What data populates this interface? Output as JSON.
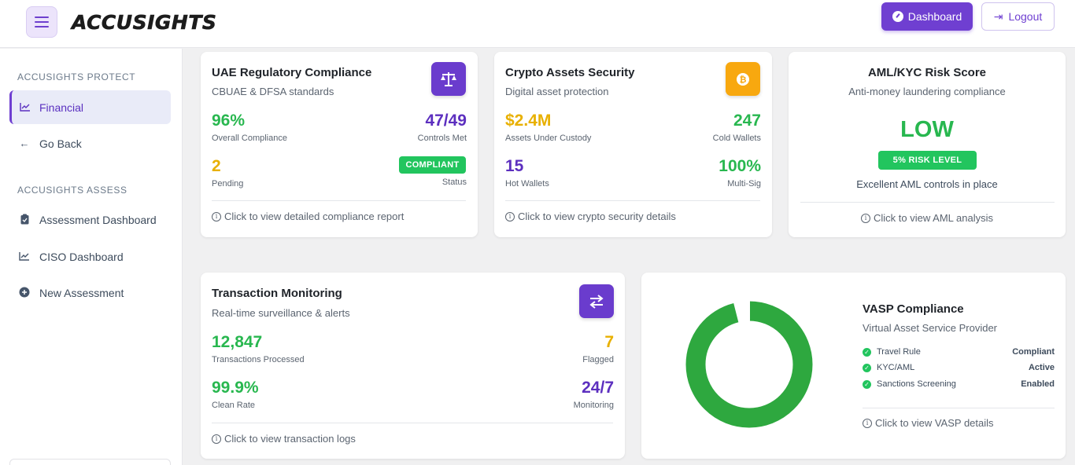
{
  "header": {
    "logo": "ACCUSIGHTS",
    "dashboard_label": "Dashboard",
    "logout_label": "Logout"
  },
  "sidebar": {
    "section1": "ACCUSIGHTS PROTECT",
    "section2": "ACCUSIGHTS ASSESS",
    "items": [
      {
        "label": "Financial",
        "icon": "chart-line-icon"
      },
      {
        "label": "Go Back",
        "icon": "arrow-left-icon"
      },
      {
        "label": "Assessment Dashboard",
        "icon": "clipboard-icon"
      },
      {
        "label": "CISO Dashboard",
        "icon": "chart-line-icon"
      },
      {
        "label": "New Assessment",
        "icon": "plus-circle-icon"
      }
    ]
  },
  "uae": {
    "title": "UAE Regulatory Compliance",
    "subtitle": "CBUAE & DFSA standards",
    "overall_value": "96%",
    "overall_label": "Overall Compliance",
    "controls_value": "47/49",
    "controls_label": "Controls Met",
    "pending_value": "2",
    "pending_label": "Pending",
    "status_badge": "COMPLIANT",
    "status_label": "Status",
    "footer": "Click to view detailed compliance report"
  },
  "crypto": {
    "title": "Crypto Assets Security",
    "subtitle": "Digital asset protection",
    "auc_value": "$2.4M",
    "auc_label": "Assets Under Custody",
    "cold_value": "247",
    "cold_label": "Cold Wallets",
    "hot_value": "15",
    "hot_label": "Hot Wallets",
    "multisig_value": "100%",
    "multisig_label": "Multi-Sig",
    "footer": "Click to view crypto security details"
  },
  "aml": {
    "title": "AML/KYC Risk Score",
    "subtitle": "Anti-money laundering compliance",
    "level": "LOW",
    "risk_badge": "5% RISK LEVEL",
    "note": "Excellent AML controls in place",
    "footer": "Click to view AML analysis"
  },
  "txn": {
    "title": "Transaction Monitoring",
    "subtitle": "Real-time surveillance & alerts",
    "processed_value": "12,847",
    "processed_label": "Transactions Processed",
    "flagged_value": "7",
    "flagged_label": "Flagged",
    "clean_value": "99.9%",
    "clean_label": "Clean Rate",
    "monitoring_value": "24/7",
    "monitoring_label": "Monitoring",
    "footer": "Click to view transaction logs"
  },
  "vasp": {
    "title": "VASP Compliance",
    "subtitle": "Virtual Asset Service Provider",
    "rows": [
      {
        "label": "Travel Rule",
        "value": "Compliant"
      },
      {
        "label": "KYC/AML",
        "value": "Active"
      },
      {
        "label": "Sanctions Screening",
        "value": "Enabled"
      }
    ],
    "footer": "Click to view VASP details",
    "donut": {
      "green_fraction": 0.96,
      "yellow_fraction": 0.04,
      "green_color": "#2ea83f",
      "yellow_color": "#f5c211"
    }
  }
}
